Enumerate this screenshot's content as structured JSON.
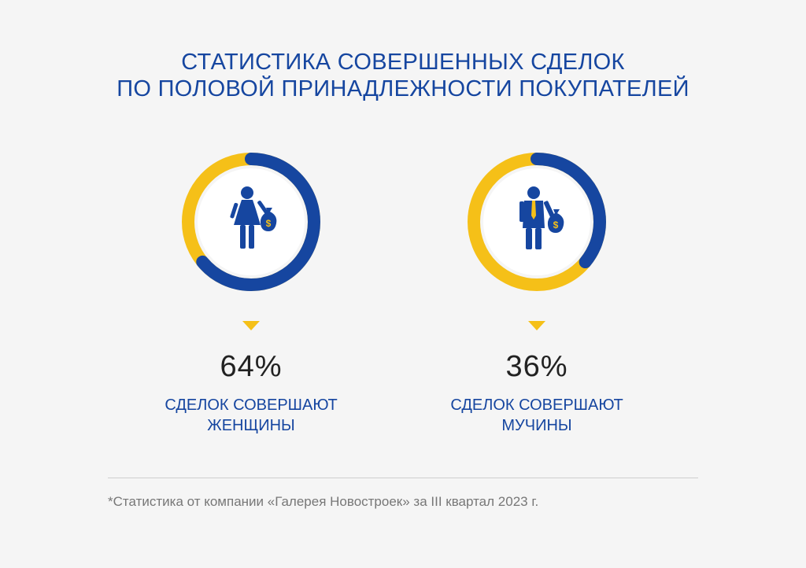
{
  "title": {
    "line1": "СТАТИСТИКА СОВЕРШЕННЫХ СДЕЛОК",
    "line2": "ПО ПОЛОВОЙ ПРИНАДЛЕЖНОСТИ ПОКУПАТЕЛЕЙ"
  },
  "chart_data": [
    {
      "type": "pie",
      "title": "",
      "series": [
        {
          "name": "women_share",
          "values": [
            64
          ]
        },
        {
          "name": "remainder",
          "values": [
            36
          ]
        }
      ],
      "value": 64,
      "value_label": "64%",
      "label_line1": "СДЕЛОК СОВЕРШАЮТ",
      "label_line2": "ЖЕНЩИНЫ",
      "icon": "woman-with-money-bag-icon"
    },
    {
      "type": "pie",
      "title": "",
      "series": [
        {
          "name": "men_share",
          "values": [
            36
          ]
        },
        {
          "name": "remainder",
          "values": [
            64
          ]
        }
      ],
      "value": 36,
      "value_label": "36%",
      "label_line1": "СДЕЛОК СОВЕРШАЮТ",
      "label_line2": "МУЧИНЫ",
      "icon": "man-with-money-bag-icon"
    }
  ],
  "colors": {
    "blue": "#1646a0",
    "yellow": "#f5c018"
  },
  "footnote": "*Статистика от компании «Галерея Новостроек» за III квартал 2023 г."
}
